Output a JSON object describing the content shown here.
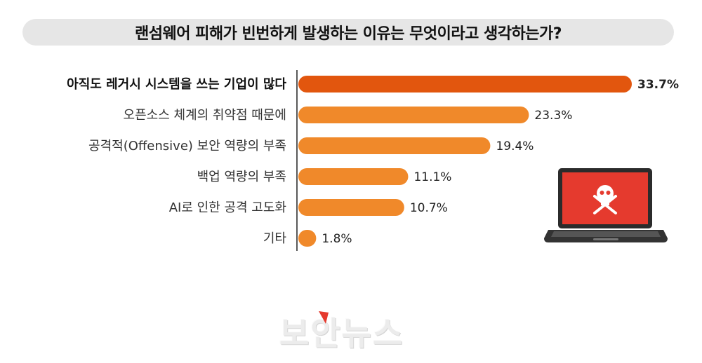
{
  "title": "랜섬웨어 피해가 빈번하게 발생하는 이유는 무엇이라고 생각하는가?",
  "watermark": "보안뉴스",
  "colors": {
    "highlight": "#e2560e",
    "bar": "#f0892a",
    "title_bg": "#e6e6e6",
    "screen": "#e53a2e"
  },
  "icons": [
    "laptop-icon",
    "skull-crossbones-icon"
  ],
  "chart_data": {
    "type": "bar",
    "orientation": "horizontal",
    "title": "랜섬웨어 피해가 빈번하게 발생하는 이유는 무엇이라고 생각하는가?",
    "categories": [
      "아직도 레거시 시스템을 쓰는 기업이 많다",
      "오픈소스 체계의 취약점 때문에",
      "공격적(Offensive) 보안 역량의 부족",
      "백업 역량의 부족",
      "AI로 인한 공격 고도화",
      "기타"
    ],
    "values": [
      33.7,
      23.3,
      19.4,
      11.1,
      10.7,
      1.8
    ],
    "value_labels": [
      "33.7%",
      "23.3%",
      "19.4%",
      "11.1%",
      "10.7%",
      "1.8%"
    ],
    "xlim": [
      0,
      33.7
    ],
    "highlight_index": 0,
    "grid": false,
    "legend": "none"
  }
}
